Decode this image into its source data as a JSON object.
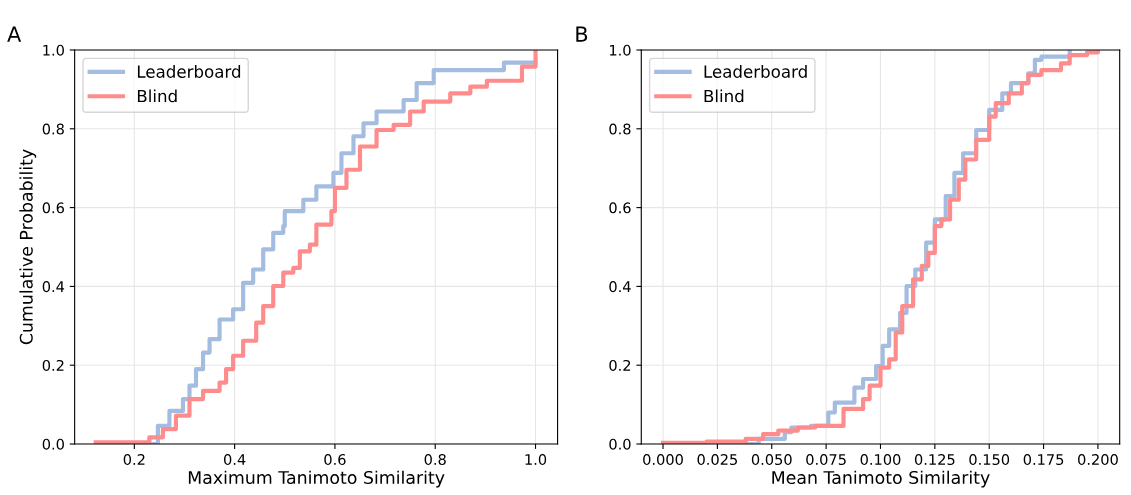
{
  "chart_data": [
    {
      "type": "step",
      "title": "A",
      "xlabel": "Maximum Tanimoto Similarity",
      "ylabel": "Cumulative Probability",
      "xlim": [
        0.081,
        1.044
      ],
      "xticks": [
        {
          "value": 0.2,
          "label": "0.2"
        },
        {
          "value": 0.4,
          "label": "0.4"
        },
        {
          "value": 0.6,
          "label": "0.6"
        },
        {
          "value": 0.8,
          "label": "0.8"
        },
        {
          "value": 1.0,
          "label": "1.0"
        }
      ],
      "ylim": [
        0,
        1
      ],
      "yticks": [
        {
          "value": 0,
          "label": "0.0"
        },
        {
          "value": 0.2,
          "label": "0.2"
        },
        {
          "value": 0.4,
          "label": "0.4"
        },
        {
          "value": 0.6,
          "label": "0.6"
        },
        {
          "value": 0.8,
          "label": "0.8"
        },
        {
          "value": 1.0,
          "label": "1.0"
        }
      ],
      "grid": true,
      "legend": "top left",
      "series": [
        {
          "name": "Leaderboard",
          "color": "#a4bcdf",
          "x": [
            0.22,
            0.247,
            0.27,
            0.297,
            0.31,
            0.323,
            0.337,
            0.35,
            0.37,
            0.397,
            0.417,
            0.437,
            0.457,
            0.477,
            0.497,
            0.5,
            0.537,
            0.563,
            0.597,
            0.613,
            0.637,
            0.657,
            0.683,
            0.737,
            0.763,
            0.797,
            0.863,
            0.937,
            1.0
          ],
          "values": [
            0,
            0.046,
            0.084,
            0.114,
            0.148,
            0.19,
            0.232,
            0.266,
            0.316,
            0.342,
            0.409,
            0.443,
            0.494,
            0.536,
            0.553,
            0.591,
            0.62,
            0.654,
            0.688,
            0.738,
            0.781,
            0.814,
            0.844,
            0.873,
            0.916,
            0.949,
            0.949,
            0.968,
            0.968
          ]
        },
        {
          "name": "Blind",
          "color": "#ff8c8c",
          "x": [
            0.123,
            0.203,
            0.23,
            0.257,
            0.283,
            0.31,
            0.337,
            0.37,
            0.383,
            0.397,
            0.417,
            0.443,
            0.457,
            0.477,
            0.497,
            0.517,
            0.53,
            0.55,
            0.563,
            0.593,
            0.6,
            0.623,
            0.65,
            0.683,
            0.717,
            0.75,
            0.777,
            0.83,
            0.87,
            0.903,
            0.963,
            0.973,
            1.0,
            1.0
          ],
          "values": [
            0.004,
            0.004,
            0.017,
            0.038,
            0.072,
            0.114,
            0.135,
            0.156,
            0.19,
            0.224,
            0.262,
            0.308,
            0.35,
            0.401,
            0.435,
            0.447,
            0.489,
            0.506,
            0.557,
            0.591,
            0.65,
            0.696,
            0.755,
            0.797,
            0.81,
            0.844,
            0.869,
            0.89,
            0.907,
            0.922,
            0.922,
            0.958,
            0.958,
            1.0
          ]
        }
      ]
    },
    {
      "type": "step",
      "title": "B",
      "xlabel": "Mean Tanimoto Similarity",
      "xlim": [
        -0.01,
        0.21
      ],
      "xticks": [
        {
          "value": 0,
          "label": "0.000"
        },
        {
          "value": 0.025,
          "label": "0.025"
        },
        {
          "value": 0.05,
          "label": "0.050"
        },
        {
          "value": 0.075,
          "label": "0.075"
        },
        {
          "value": 0.1,
          "label": "0.100"
        },
        {
          "value": 0.125,
          "label": "0.125"
        },
        {
          "value": 0.15,
          "label": "0.150"
        },
        {
          "value": 0.175,
          "label": "0.175"
        },
        {
          "value": 0.2,
          "label": "0.200"
        }
      ],
      "ylim": [
        0,
        1
      ],
      "yticks": [
        {
          "value": 0,
          "label": "0.0"
        },
        {
          "value": 0.2,
          "label": "0.2"
        },
        {
          "value": 0.4,
          "label": "0.4"
        },
        {
          "value": 0.6,
          "label": "0.6"
        },
        {
          "value": 0.8,
          "label": "0.8"
        },
        {
          "value": 1.0,
          "label": "1.0"
        }
      ],
      "grid": true,
      "legend": "top left",
      "series": [
        {
          "name": "Leaderboard",
          "color": "#a4bcdf",
          "x": [
            0.038,
            0.044,
            0.056,
            0.059,
            0.068,
            0.076,
            0.079,
            0.085,
            0.088,
            0.092,
            0.098,
            0.101,
            0.104,
            0.109,
            0.112,
            0.116,
            0.121,
            0.125,
            0.13,
            0.134,
            0.138,
            0.144,
            0.15,
            0.156,
            0.16,
            0.168,
            0.171,
            0.174,
            0.181,
            0.187
          ],
          "values": [
            0,
            0.013,
            0.03,
            0.042,
            0.046,
            0.08,
            0.105,
            0.105,
            0.143,
            0.165,
            0.198,
            0.249,
            0.291,
            0.333,
            0.401,
            0.443,
            0.511,
            0.57,
            0.629,
            0.688,
            0.738,
            0.797,
            0.848,
            0.89,
            0.916,
            0.941,
            0.975,
            0.983,
            0.983,
            1.0
          ]
        },
        {
          "name": "Blind",
          "color": "#ff8c8c",
          "x": [
            0.0,
            0.02,
            0.038,
            0.046,
            0.053,
            0.062,
            0.07,
            0.079,
            0.083,
            0.092,
            0.095,
            0.1,
            0.104,
            0.107,
            0.11,
            0.115,
            0.119,
            0.122,
            0.125,
            0.128,
            0.132,
            0.136,
            0.139,
            0.144,
            0.15,
            0.153,
            0.159,
            0.165,
            0.168,
            0.174,
            0.183,
            0.187,
            0.195,
            0.2
          ],
          "values": [
            0.003,
            0.006,
            0.013,
            0.025,
            0.034,
            0.042,
            0.046,
            0.046,
            0.089,
            0.114,
            0.148,
            0.194,
            0.215,
            0.283,
            0.35,
            0.418,
            0.452,
            0.485,
            0.553,
            0.57,
            0.62,
            0.671,
            0.722,
            0.772,
            0.831,
            0.865,
            0.89,
            0.916,
            0.937,
            0.949,
            0.966,
            0.987,
            0.994,
            1.0
          ]
        }
      ]
    }
  ]
}
